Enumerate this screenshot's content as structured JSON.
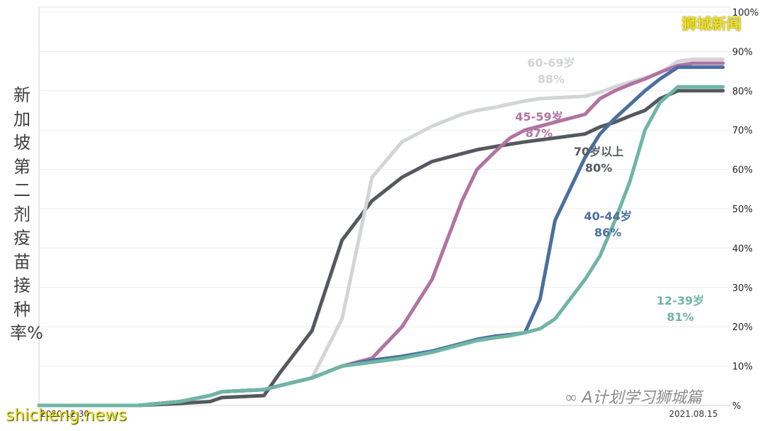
{
  "page": {
    "ylabel": "新加坡第二剂疫苗接种率%",
    "brand": "狮城新闻",
    "footer_brand": "shicheng.news",
    "watermark": "A计划学习狮城篇",
    "watermark_icon": "wechat-icon"
  },
  "chart_data": {
    "type": "line",
    "title": "",
    "xlabel": "",
    "ylabel": "新加坡第二剂疫苗接种率%",
    "x_tick_labels": [
      "2020.12.30",
      "2021.08.15"
    ],
    "x_range": [
      "2020-12-30",
      "2021-08-15"
    ],
    "ylim": [
      0,
      100
    ],
    "y_tick_labels": [
      "%",
      "10%",
      "20%",
      "30%",
      "40%",
      "50%",
      "60%",
      "70%",
      "80%",
      "90%",
      "100%"
    ],
    "y_axis_side": "right",
    "grid": true,
    "x": [
      "2020-12-30",
      "2021-01-21",
      "2021-02-01",
      "2021-02-15",
      "2021-02-25",
      "2021-03-01",
      "2021-03-15",
      "2021-03-20",
      "2021-03-31",
      "2021-04-10",
      "2021-04-20",
      "2021-04-30",
      "2021-05-10",
      "2021-05-20",
      "2021-05-25",
      "2021-05-31",
      "2021-06-05",
      "2021-06-10",
      "2021-06-15",
      "2021-06-20",
      "2021-06-30",
      "2021-07-05",
      "2021-07-10",
      "2021-07-15",
      "2021-07-20",
      "2021-07-25",
      "2021-07-31",
      "2021-08-05",
      "2021-08-10",
      "2021-08-15"
    ],
    "series": [
      {
        "name": "70岁以上",
        "label": "80%",
        "color": "#55595f",
        "values": [
          0,
          0,
          0,
          0.5,
          1,
          2,
          2.5,
          8,
          19,
          42,
          52,
          58,
          62,
          64,
          65,
          65.8,
          66.4,
          67,
          67.5,
          68,
          69,
          70.8,
          72,
          73.6,
          75,
          78,
          80,
          80,
          80,
          80
        ]
      },
      {
        "name": "60-69岁",
        "label": "88%",
        "color": "#d3d4d6",
        "values": [
          0,
          0,
          0,
          1,
          2.5,
          3.5,
          4,
          5,
          7,
          22,
          58,
          67,
          71,
          74,
          75,
          75.8,
          76.6,
          77.4,
          78,
          78.2,
          78.6,
          79.6,
          81,
          82.2,
          83.3,
          84.5,
          87.5,
          88,
          88,
          88
        ]
      },
      {
        "name": "45-59岁",
        "label": "87%",
        "color": "#b073a2",
        "values": [
          0,
          0,
          0,
          1,
          2.5,
          3.5,
          4,
          5,
          7,
          10,
          12,
          20,
          32,
          52,
          60,
          64.5,
          68,
          70,
          71,
          72,
          74,
          78,
          80,
          81.6,
          83,
          84.7,
          86.4,
          87,
          87,
          87
        ]
      },
      {
        "name": "40-44岁",
        "label": "86%",
        "color": "#4a6fa0",
        "values": [
          0,
          0,
          0,
          1,
          2.5,
          3.5,
          4,
          5,
          7,
          10,
          11.5,
          12.5,
          13.8,
          15.8,
          16.8,
          17.6,
          18,
          18.5,
          27,
          47,
          63,
          69,
          73,
          76.5,
          80,
          83,
          86,
          86,
          86,
          86
        ]
      },
      {
        "name": "12-39岁",
        "label": "81%",
        "color": "#6fb5a5",
        "values": [
          0,
          0,
          0,
          1,
          2.5,
          3.5,
          4,
          5,
          7,
          10,
          11,
          12,
          13.5,
          15.5,
          16.5,
          17.2,
          17.7,
          18.5,
          19.5,
          22,
          32,
          38,
          47,
          57,
          70,
          77,
          81,
          81,
          81,
          81
        ]
      }
    ]
  }
}
